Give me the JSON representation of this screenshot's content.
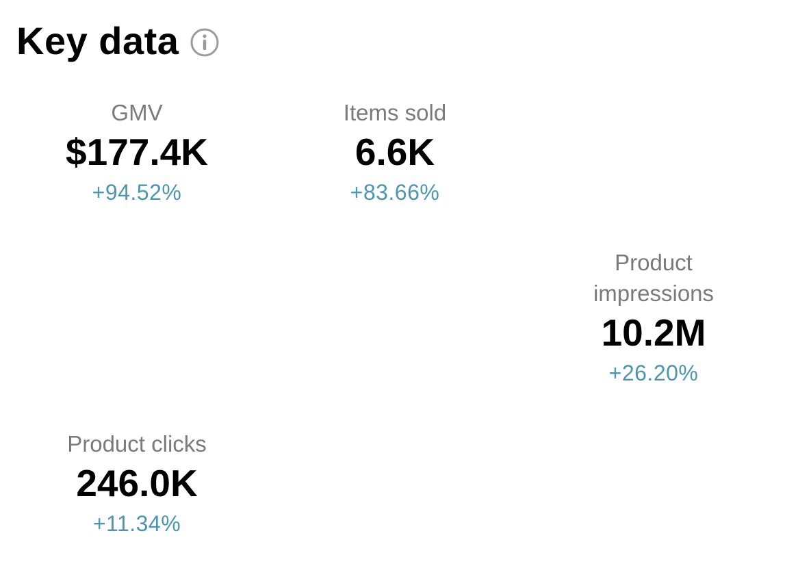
{
  "header": {
    "title": "Key data",
    "info_icon": "info-circle-icon"
  },
  "colors": {
    "label": "#7a7a7a",
    "value": "#000000",
    "change_positive": "#4b96b0",
    "icon": "#9b9b9b"
  },
  "metrics": [
    {
      "label": "GMV",
      "value": "$177.4K",
      "change": "+94.52%"
    },
    {
      "label": "Items sold",
      "value": "6.6K",
      "change": "+83.66%"
    },
    {
      "label": "Product impressions",
      "value": "10.2M",
      "change": "+26.20%"
    },
    {
      "label": "Product clicks",
      "value": "246.0K",
      "change": "+11.34%"
    }
  ]
}
